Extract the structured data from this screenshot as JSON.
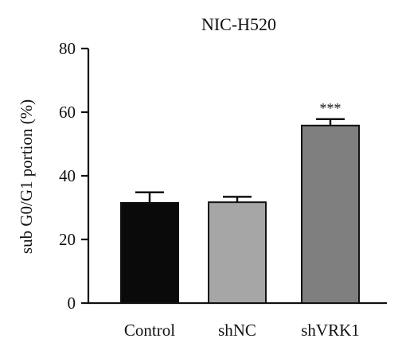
{
  "chart_data": {
    "type": "bar",
    "title": "NIC-H520",
    "xlabel": "",
    "ylabel": "sub G0/G1 portion (%)",
    "ylim": [
      0,
      80
    ],
    "yticks": [
      0,
      20,
      40,
      60,
      80
    ],
    "categories": [
      "Control",
      "shNC",
      "shVRK1"
    ],
    "values": [
      31.5,
      31.7,
      55.8
    ],
    "errors": [
      3.3,
      1.7,
      2.0
    ],
    "annotations": [
      "",
      "",
      "***"
    ],
    "colors": [
      "#0a0a0a",
      "#a6a6a6",
      "#7f7f7f"
    ],
    "grid": false
  }
}
